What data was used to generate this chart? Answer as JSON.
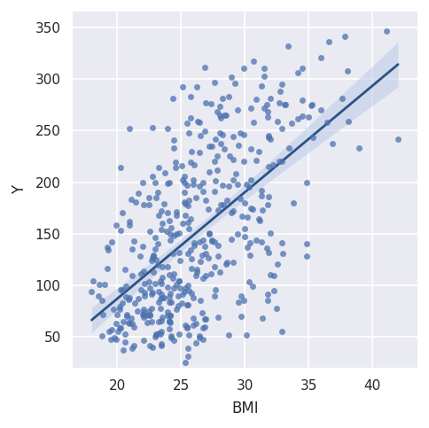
{
  "xlabel": "BMI",
  "ylabel": "Y",
  "scatter_color": "#4c72b0",
  "line_color": "#2c5282",
  "ci_color": "#c0cfe8",
  "bg_color": "#eaeaf2",
  "outer_bg": "#ffffff",
  "grid_color": "#ffffff",
  "scatter_alpha": 0.75,
  "scatter_size": 25,
  "xlim": [
    16.5,
    43.5
  ],
  "ylim": [
    20,
    365
  ],
  "xticks": [
    20,
    25,
    30,
    35,
    40
  ],
  "yticks": [
    50,
    100,
    150,
    200,
    250,
    300,
    350
  ],
  "figsize": [
    4.84,
    4.83
  ],
  "dpi": 100
}
